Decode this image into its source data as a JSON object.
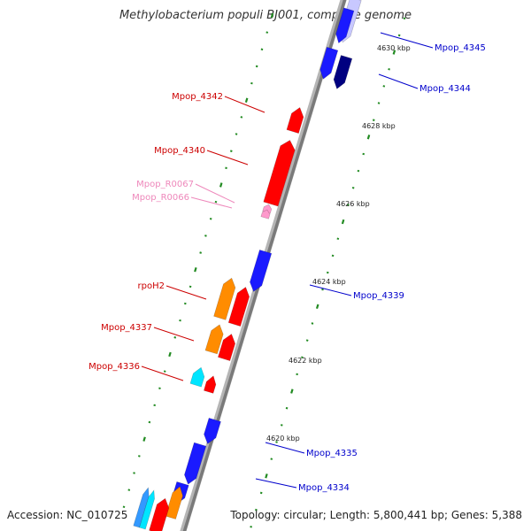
{
  "title": "Methylobacterium populi BJ001, complete genome",
  "footer": {
    "accession": "Accession: NC_010725",
    "topology": "Topology: circular; Length: 5,800,441 bp; Genes: 5,388"
  },
  "colors": {
    "backbone": "#7a7a7a",
    "forward_gene": "#ff0000",
    "reverse_gene": "#1a1aff",
    "reverse_gene_dark": "#000080",
    "orange_gene": "#ff8c00",
    "cyan_gene": "#00e5ff",
    "rna_gene": "#ff99cc",
    "tick_dot": "#228b22",
    "label_red": "#cc0000",
    "label_blue": "#0000cc",
    "label_pink": "#ee88bb"
  },
  "scale_labels": [
    "4630 kbp",
    "4628 kbp",
    "4626 kbp",
    "4624 kbp",
    "4622 kbp",
    "4620 kbp"
  ],
  "gene_labels": {
    "left": [
      "Mpop_4342",
      "Mpop_4340",
      "Mpop_R0067",
      "Mpop_R0066",
      "rpoH2",
      "Mpop_4337",
      "Mpop_4336"
    ],
    "right": [
      "Mpop_4345",
      "Mpop_4344",
      "Mpop_4339",
      "Mpop_4335",
      "Mpop_4334"
    ]
  }
}
